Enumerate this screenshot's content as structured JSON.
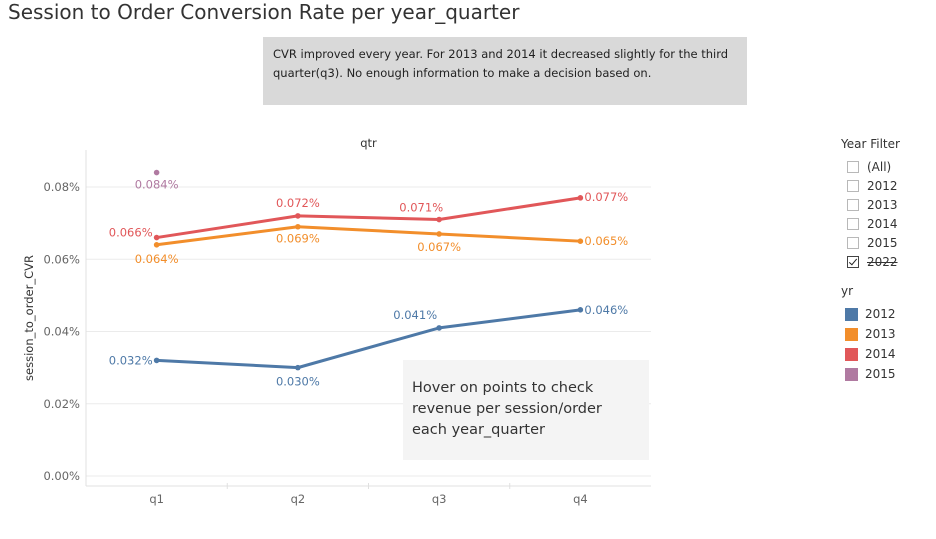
{
  "title": "Session to Order Conversion Rate per year_quarter",
  "note": "CVR improved every year. For 2013 and 2014 it decreased slightly for the third quarter(q3). No enough information to make a decision based on.",
  "hover_note": "Hover on points to check revenue per session/order each year_quarter",
  "year_filter": {
    "title": "Year Filter",
    "items": [
      {
        "label": "(All)",
        "checked": false,
        "struck": false
      },
      {
        "label": "2012",
        "checked": false,
        "struck": false
      },
      {
        "label": "2013",
        "checked": false,
        "struck": false
      },
      {
        "label": "2014",
        "checked": false,
        "struck": false
      },
      {
        "label": "2015",
        "checked": false,
        "struck": false
      },
      {
        "label": "2022",
        "checked": true,
        "struck": true
      }
    ]
  },
  "yr_legend": {
    "title": "yr",
    "items": [
      {
        "label": "2012",
        "color": "#4e79a7"
      },
      {
        "label": "2013",
        "color": "#f28e2b"
      },
      {
        "label": "2014",
        "color": "#e15759"
      },
      {
        "label": "2015",
        "color": "#b07aa1"
      }
    ]
  },
  "chart_data": {
    "type": "line",
    "title": "Session to Order Conversion Rate per year_quarter",
    "top_label": "qtr",
    "xlabel": "",
    "ylabel": "session_to_order_CVR",
    "categories": [
      "q1",
      "q2",
      "q3",
      "q4"
    ],
    "y_ticks": [
      "0.00%",
      "0.02%",
      "0.04%",
      "0.06%",
      "0.08%"
    ],
    "ylim": [
      0,
      0.09
    ],
    "grid": true,
    "series": [
      {
        "name": "2012",
        "color": "#4e79a7",
        "values": [
          0.032,
          0.03,
          0.041,
          0.046
        ],
        "labels": [
          "0.032%",
          "0.030%",
          "0.041%",
          "0.046%"
        ]
      },
      {
        "name": "2013",
        "color": "#f28e2b",
        "values": [
          0.064,
          0.069,
          0.067,
          0.065
        ],
        "labels": [
          "0.064%",
          "0.069%",
          "0.067%",
          "0.065%"
        ]
      },
      {
        "name": "2014",
        "color": "#e15759",
        "values": [
          0.066,
          0.072,
          0.071,
          0.077
        ],
        "labels": [
          "0.066%",
          "0.072%",
          "0.071%",
          "0.077%"
        ]
      },
      {
        "name": "2015",
        "color": "#b07aa1",
        "values": [
          0.084,
          null,
          null,
          null
        ],
        "labels": [
          "0.084%",
          "",
          "",
          ""
        ]
      }
    ]
  }
}
